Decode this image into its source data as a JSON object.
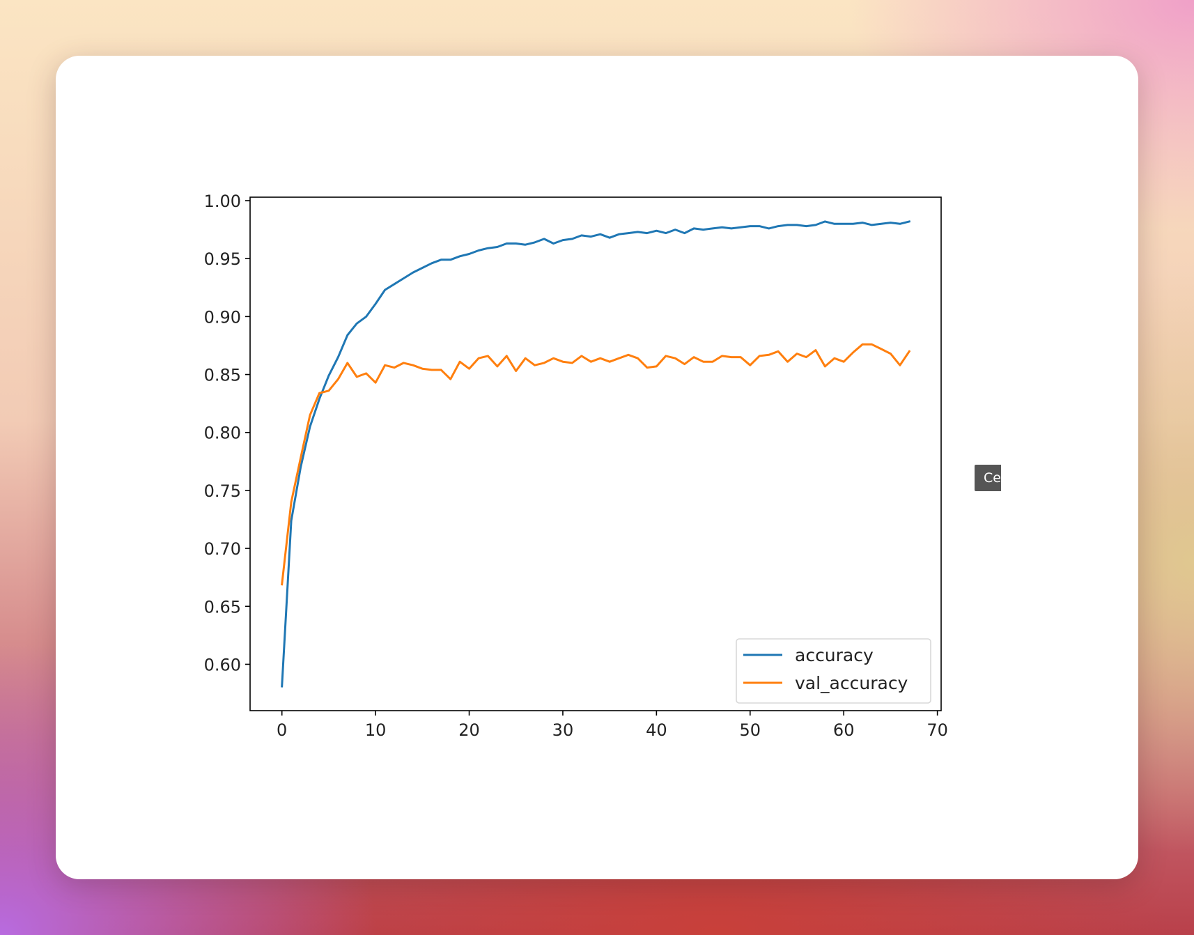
{
  "tooltip": {
    "text": "Ce"
  },
  "colors": {
    "accuracy": "#1f77b4",
    "val_accuracy": "#ff7f0e",
    "axes": "#000000",
    "text": "#222222"
  },
  "chart_data": {
    "type": "line",
    "title": "",
    "xlabel": "",
    "ylabel": "",
    "xlim": [
      -3.4,
      70.4
    ],
    "ylim": [
      0.56,
      1.003
    ],
    "xticks": [
      0,
      10,
      20,
      30,
      40,
      50,
      60,
      70
    ],
    "xtick_labels": [
      "0",
      "10",
      "20",
      "30",
      "40",
      "50",
      "60",
      "70"
    ],
    "yticks": [
      0.6,
      0.65,
      0.7,
      0.75,
      0.8,
      0.85,
      0.9,
      0.95,
      1.0
    ],
    "ytick_labels": [
      "0.60",
      "0.65",
      "0.70",
      "0.75",
      "0.80",
      "0.85",
      "0.90",
      "0.95",
      "1.00"
    ],
    "grid": false,
    "legend": {
      "position": "lower-right"
    },
    "series": [
      {
        "name": "accuracy",
        "x": [
          0,
          1,
          2,
          3,
          4,
          5,
          6,
          7,
          8,
          9,
          10,
          11,
          12,
          13,
          14,
          15,
          16,
          17,
          18,
          19,
          20,
          21,
          22,
          23,
          24,
          25,
          26,
          27,
          28,
          29,
          30,
          31,
          32,
          33,
          34,
          35,
          36,
          37,
          38,
          39,
          40,
          41,
          42,
          43,
          44,
          45,
          46,
          47,
          48,
          49,
          50,
          51,
          52,
          53,
          54,
          55,
          56,
          57,
          58,
          59,
          60,
          61,
          62,
          63,
          64,
          65,
          66,
          67
        ],
        "values": [
          0.581,
          0.724,
          0.77,
          0.805,
          0.829,
          0.849,
          0.865,
          0.884,
          0.894,
          0.9,
          0.911,
          0.923,
          0.928,
          0.933,
          0.938,
          0.942,
          0.946,
          0.949,
          0.949,
          0.952,
          0.954,
          0.957,
          0.959,
          0.96,
          0.963,
          0.963,
          0.962,
          0.964,
          0.967,
          0.963,
          0.966,
          0.967,
          0.97,
          0.969,
          0.971,
          0.968,
          0.971,
          0.972,
          0.973,
          0.972,
          0.974,
          0.972,
          0.975,
          0.972,
          0.976,
          0.975,
          0.976,
          0.977,
          0.976,
          0.977,
          0.978,
          0.978,
          0.976,
          0.978,
          0.979,
          0.979,
          0.978,
          0.979,
          0.982,
          0.98,
          0.98,
          0.98,
          0.981,
          0.979,
          0.98,
          0.981,
          0.98,
          0.982
        ]
      },
      {
        "name": "val_accuracy",
        "x": [
          0,
          1,
          2,
          3,
          4,
          5,
          6,
          7,
          8,
          9,
          10,
          11,
          12,
          13,
          14,
          15,
          16,
          17,
          18,
          19,
          20,
          21,
          22,
          23,
          24,
          25,
          26,
          27,
          28,
          29,
          30,
          31,
          32,
          33,
          34,
          35,
          36,
          37,
          38,
          39,
          40,
          41,
          42,
          43,
          44,
          45,
          46,
          47,
          48,
          49,
          50,
          51,
          52,
          53,
          54,
          55,
          56,
          57,
          58,
          59,
          60,
          61,
          62,
          63,
          64,
          65,
          66,
          67
        ],
        "values": [
          0.669,
          0.74,
          0.778,
          0.815,
          0.834,
          0.836,
          0.846,
          0.86,
          0.848,
          0.851,
          0.843,
          0.858,
          0.856,
          0.86,
          0.858,
          0.855,
          0.854,
          0.854,
          0.846,
          0.861,
          0.855,
          0.864,
          0.866,
          0.857,
          0.866,
          0.853,
          0.864,
          0.858,
          0.86,
          0.864,
          0.861,
          0.86,
          0.866,
          0.861,
          0.864,
          0.861,
          0.864,
          0.867,
          0.864,
          0.856,
          0.857,
          0.866,
          0.864,
          0.859,
          0.865,
          0.861,
          0.861,
          0.866,
          0.865,
          0.865,
          0.858,
          0.866,
          0.867,
          0.87,
          0.861,
          0.868,
          0.865,
          0.871,
          0.857,
          0.864,
          0.861,
          0.869,
          0.876,
          0.876,
          0.872,
          0.868,
          0.858,
          0.87
        ]
      }
    ]
  }
}
